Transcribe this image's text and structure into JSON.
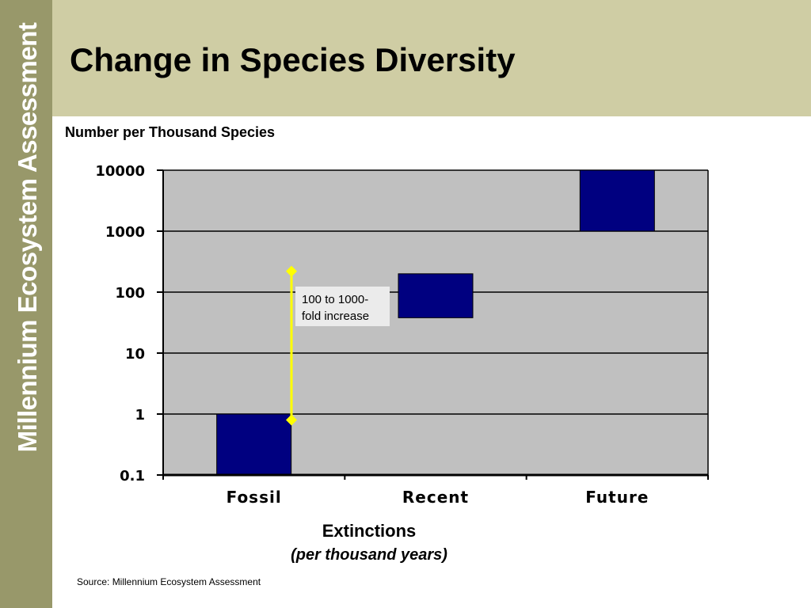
{
  "sidebar": {
    "brand": "Millennium Ecosystem Assessment"
  },
  "header": {
    "title": "Change in Species Diversity"
  },
  "chart_data": {
    "type": "bar",
    "subtitle": "Number per Thousand Species",
    "xlabel": "Extinctions",
    "xlabel_sub": "(per thousand years)",
    "y_scale": "log",
    "ylim": [
      0.1,
      10000
    ],
    "yticks": [
      {
        "value": 0.1,
        "label": "0.1"
      },
      {
        "value": 1,
        "label": "1"
      },
      {
        "value": 10,
        "label": "10"
      },
      {
        "value": 100,
        "label": "100"
      },
      {
        "value": 1000,
        "label": "1000"
      },
      {
        "value": 10000,
        "label": "10000"
      }
    ],
    "grid": true,
    "categories": [
      "Fossil",
      "Recent",
      "Future"
    ],
    "ranges": [
      {
        "low": 0.1,
        "high": 1
      },
      {
        "low": 38,
        "high": 200
      },
      {
        "low": 1000,
        "high": 10000
      }
    ],
    "annotation": {
      "text_line1": "100 to 1000-",
      "text_line2": "fold increase",
      "low": 0.8,
      "high": 220
    },
    "colors": {
      "plot_bg": "#c0c0c0",
      "bar": "#000080",
      "annotation_line": "#ffff00"
    }
  },
  "source": "Source:  Millennium Ecosystem Assessment"
}
